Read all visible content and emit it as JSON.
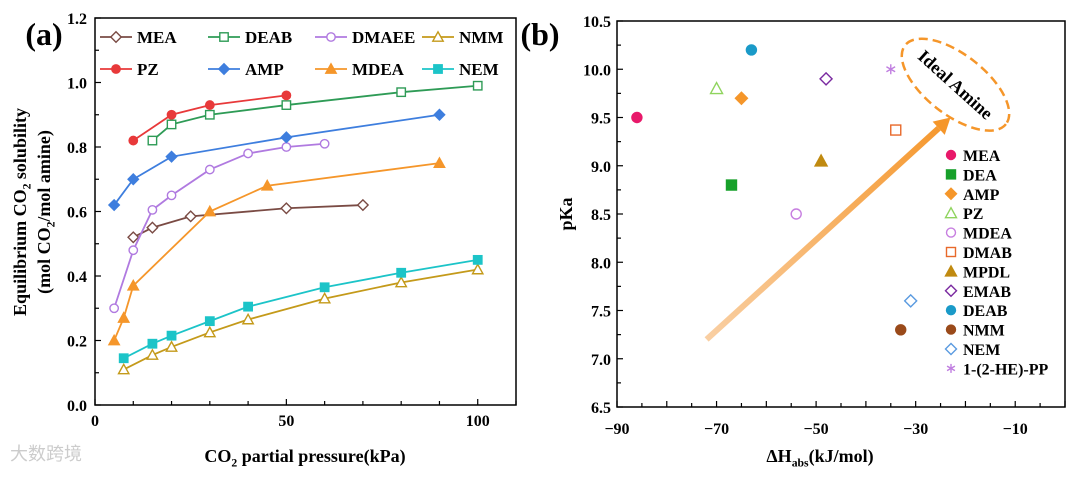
{
  "watermark": "大数跨境",
  "chart_data": [
    {
      "type": "line",
      "panel_label": "(a)",
      "xlabel": "CO2 partial pressure(kPa)",
      "xlabel_parts": [
        "CO",
        "2",
        " partial pressure(kPa)"
      ],
      "ylabel_line1_parts": [
        "Equilibrium CO",
        "2",
        " solubility"
      ],
      "ylabel_line2_parts": [
        "(mol CO",
        "2",
        "/mol amine)"
      ],
      "xlim": [
        0,
        110
      ],
      "ylim": [
        0,
        1.2
      ],
      "xticks": [
        0,
        50,
        100
      ],
      "yticks": [
        0.0,
        0.2,
        0.4,
        0.6,
        0.8,
        1.0,
        1.2
      ],
      "ytick_labels": [
        "0.0",
        "0.2",
        "0.4",
        "0.6",
        "0.8",
        "1.0",
        "1.2"
      ],
      "legend_position": "top",
      "series": [
        {
          "name": "MEA",
          "color": "#7a4b44",
          "marker": "diamond-open",
          "x": [
            10,
            15,
            25,
            50,
            70
          ],
          "y": [
            0.52,
            0.55,
            0.585,
            0.61,
            0.62
          ]
        },
        {
          "name": "DEAB",
          "color": "#2e9b56",
          "marker": "square-open",
          "x": [
            15,
            20,
            30,
            50,
            80,
            100
          ],
          "y": [
            0.82,
            0.87,
            0.9,
            0.93,
            0.97,
            0.99
          ]
        },
        {
          "name": "DMAEE",
          "color": "#b07ae0",
          "marker": "circle-open",
          "x": [
            5,
            10,
            15,
            20,
            30,
            40,
            50,
            60
          ],
          "y": [
            0.3,
            0.48,
            0.605,
            0.65,
            0.73,
            0.78,
            0.8,
            0.81
          ]
        },
        {
          "name": "NMM",
          "color": "#c49a1a",
          "marker": "triangle-open",
          "x": [
            7.5,
            15,
            20,
            30,
            40,
            60,
            80,
            100
          ],
          "y": [
            0.11,
            0.155,
            0.18,
            0.225,
            0.265,
            0.33,
            0.38,
            0.42
          ]
        },
        {
          "name": "PZ",
          "color": "#e8393a",
          "marker": "circle",
          "x": [
            10,
            20,
            30,
            50
          ],
          "y": [
            0.82,
            0.9,
            0.93,
            0.96
          ]
        },
        {
          "name": "AMP",
          "color": "#3e7ede",
          "marker": "diamond",
          "x": [
            5,
            10,
            20,
            50,
            90
          ],
          "y": [
            0.62,
            0.7,
            0.77,
            0.83,
            0.9
          ]
        },
        {
          "name": "MDEA",
          "color": "#f5962a",
          "marker": "triangle",
          "x": [
            5,
            7.5,
            10,
            30,
            45,
            90
          ],
          "y": [
            0.2,
            0.27,
            0.37,
            0.6,
            0.68,
            0.75
          ]
        },
        {
          "name": "NEM",
          "color": "#1cc4c8",
          "marker": "square",
          "x": [
            7.5,
            15,
            20,
            30,
            40,
            60,
            80,
            100
          ],
          "y": [
            0.145,
            0.19,
            0.215,
            0.26,
            0.305,
            0.365,
            0.41,
            0.45
          ]
        }
      ]
    },
    {
      "type": "scatter",
      "panel_label": "(b)",
      "xlabel": "ΔHabs(kJ/mol)",
      "xlabel_parts": [
        "ΔH",
        "abs",
        "(kJ/mol)"
      ],
      "ylabel": "pKa",
      "xlim": [
        -90,
        0
      ],
      "ylim": [
        6.5,
        10.5
      ],
      "xticks": [
        -90,
        -70,
        -50,
        -30,
        -10
      ],
      "xtick_labels": [
        "−90",
        "−70",
        "−50",
        "−30",
        "−10"
      ],
      "yticks": [
        6.5,
        7.0,
        7.5,
        8.0,
        8.5,
        9.0,
        9.5,
        10.0,
        10.5
      ],
      "ytick_labels": [
        "6.5",
        "7.0",
        "7.5",
        "8.0",
        "8.5",
        "9.0",
        "9.5",
        "10.0",
        "10.5"
      ],
      "legend_position": "right",
      "annotation": "Ideal Amine",
      "arrow": {
        "from": [
          -72,
          7.2
        ],
        "to": [
          -23,
          9.5
        ],
        "color": "#f5962a"
      },
      "points": [
        {
          "name": "MEA",
          "x": -86,
          "y": 9.5,
          "color": "#e8196a",
          "marker": "circle"
        },
        {
          "name": "DEA",
          "x": -67,
          "y": 8.8,
          "color": "#17a02a",
          "marker": "square"
        },
        {
          "name": "AMP",
          "x": -65,
          "y": 9.7,
          "color": "#f5962a",
          "marker": "diamond"
        },
        {
          "name": "PZ",
          "x": -70,
          "y": 9.8,
          "color": "#8fd45e",
          "marker": "triangle-open"
        },
        {
          "name": "MDEA",
          "x": -54,
          "y": 8.5,
          "color": "#c77ee0",
          "marker": "circle-open"
        },
        {
          "name": "DMAB",
          "x": -34,
          "y": 9.37,
          "color": "#e8692a",
          "marker": "square-open"
        },
        {
          "name": "MPDL",
          "x": -49,
          "y": 9.05,
          "color": "#c08a10",
          "marker": "triangle"
        },
        {
          "name": "EMAB",
          "x": -48,
          "y": 9.9,
          "color": "#7a2aa0",
          "marker": "diamond-open"
        },
        {
          "name": "DEAB",
          "x": -63,
          "y": 10.2,
          "color": "#1a9ac8",
          "marker": "circle"
        },
        {
          "name": "NMM",
          "x": -33,
          "y": 7.3,
          "color": "#9a4a1a",
          "marker": "circle"
        },
        {
          "name": "NEM",
          "x": -31,
          "y": 7.6,
          "color": "#5a9ae0",
          "marker": "diamond-open"
        },
        {
          "name": "1-(2-HE)-PP",
          "x": -35,
          "y": 10.0,
          "color": "#c07ee0",
          "marker": "asterisk"
        }
      ]
    }
  ]
}
